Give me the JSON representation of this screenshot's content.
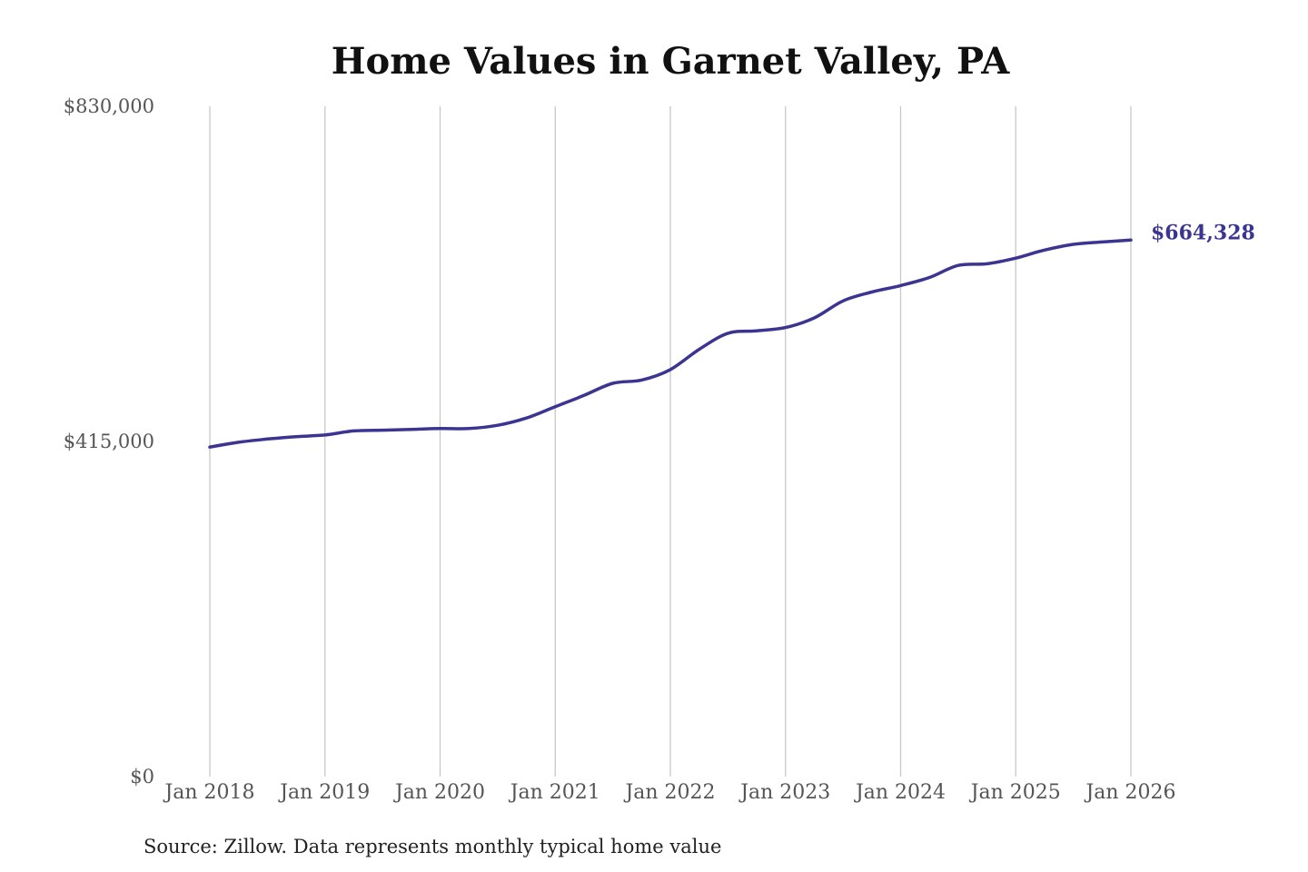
{
  "chart_data": {
    "type": "line",
    "title": "Home Values in Garnet Valley, PA",
    "xlabel": "",
    "ylabel": "",
    "ylim": [
      0,
      830000
    ],
    "y_ticks": [
      "$830,000",
      "$415,000",
      "$0"
    ],
    "y_tick_values": [
      830000,
      415000,
      0
    ],
    "x_ticks": [
      "Jan 2018",
      "Jan 2019",
      "Jan 2020",
      "Jan 2021",
      "Jan 2022",
      "Jan 2023",
      "Jan 2024",
      "Jan 2025",
      "Jan 2026"
    ],
    "x_tick_values": [
      "2018-01",
      "2019-01",
      "2020-01",
      "2021-01",
      "2022-01",
      "2023-01",
      "2024-01",
      "2025-01",
      "2026-01"
    ],
    "xlim": [
      "2018-01",
      "2026-01"
    ],
    "grid": "vertical",
    "series": [
      {
        "color": "#3b3591",
        "end_label": "$664,328",
        "x": [
          "2018-01",
          "2018-04",
          "2018-07",
          "2018-10",
          "2019-01",
          "2019-04",
          "2019-07",
          "2019-10",
          "2020-01",
          "2020-04",
          "2020-07",
          "2020-10",
          "2021-01",
          "2021-04",
          "2021-07",
          "2021-10",
          "2022-01",
          "2022-04",
          "2022-07",
          "2022-10",
          "2023-01",
          "2023-04",
          "2023-07",
          "2023-10",
          "2024-01",
          "2024-04",
          "2024-07",
          "2024-10",
          "2025-01",
          "2025-04",
          "2025-07",
          "2025-10",
          "2026-01"
        ],
        "values": [
          408000,
          414000,
          418000,
          421000,
          423000,
          428000,
          429000,
          430000,
          431000,
          431000,
          435000,
          444000,
          458000,
          472000,
          487000,
          491000,
          504000,
          529000,
          549000,
          552000,
          556000,
          568000,
          589000,
          600000,
          608000,
          618000,
          633000,
          635000,
          642000,
          652000,
          659000,
          662000,
          664328
        ]
      }
    ]
  },
  "source_note": "Source: Zillow. Data represents monthly typical home value"
}
